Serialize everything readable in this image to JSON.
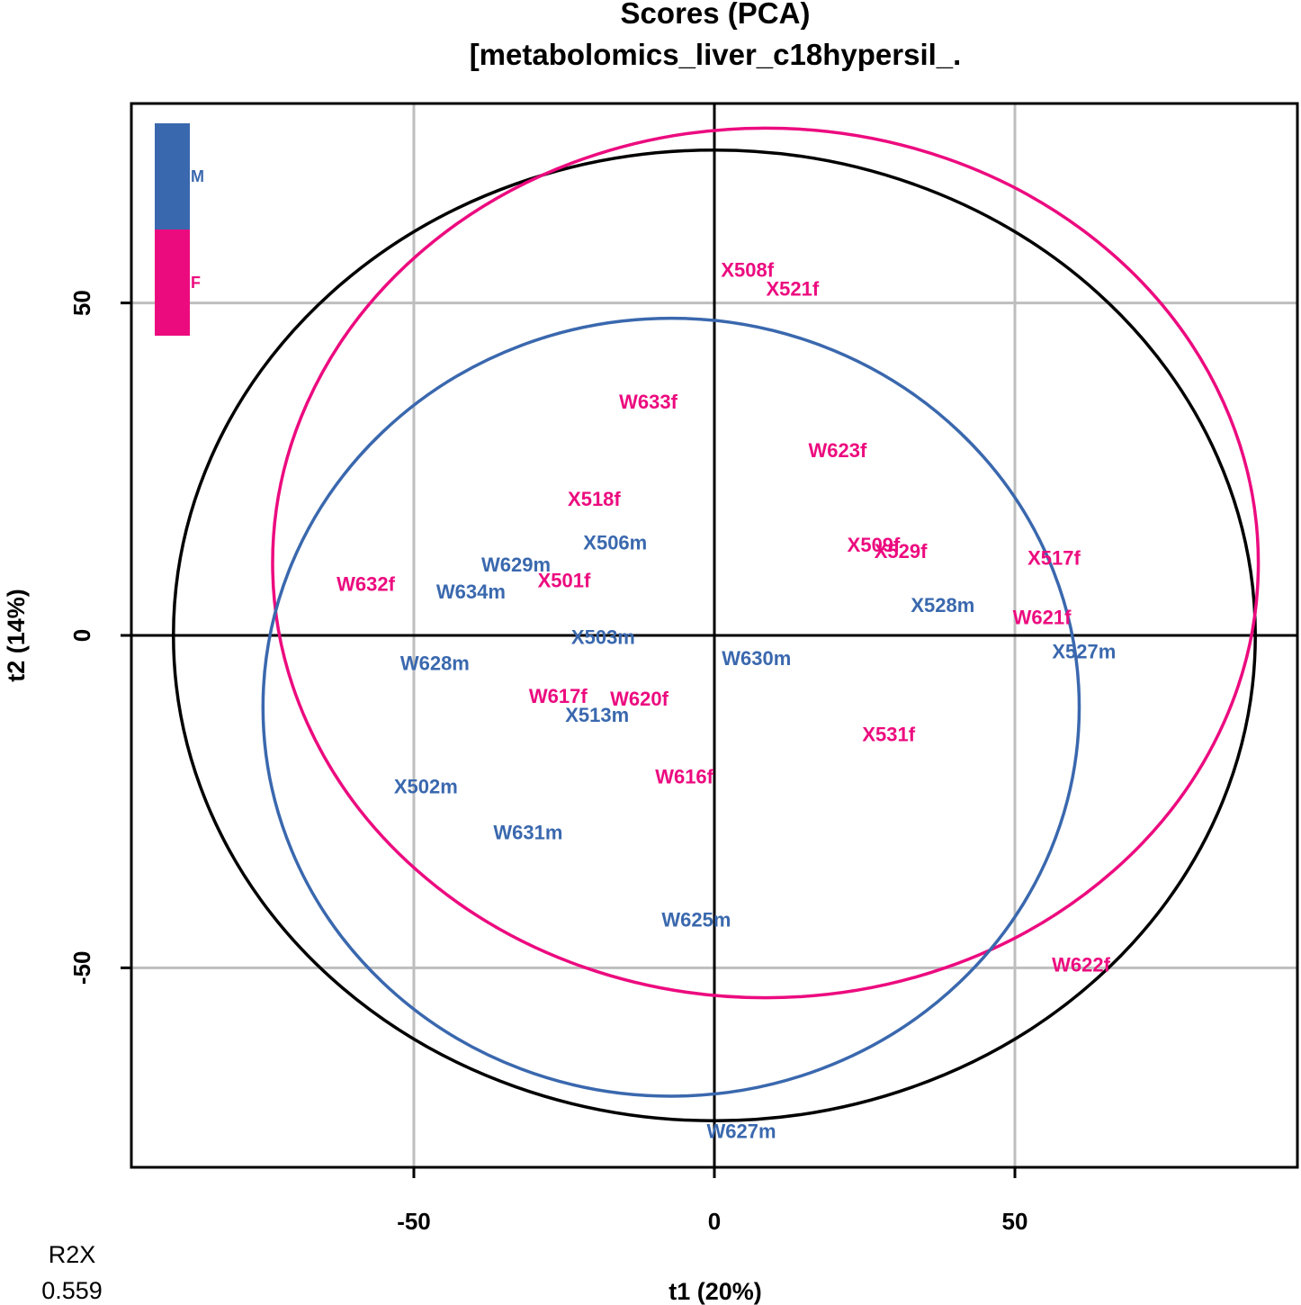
{
  "chart_data": {
    "type": "scatter",
    "title": "Scores (PCA)",
    "subtitle": "[metabolomics_liver_c18hypersil_.",
    "xlabel": "t1 (20%)",
    "ylabel": "t2 (14%)",
    "xlim": [
      -97,
      97
    ],
    "ylim": [
      -80,
      80
    ],
    "xticks": [
      -50,
      0,
      50
    ],
    "yticks": [
      -50,
      0,
      50
    ],
    "xtick_labels": [
      "-50",
      "0",
      "50"
    ],
    "ytick_labels": [
      "-50",
      "0",
      "50"
    ],
    "grid": true,
    "legend_position": "top-left",
    "legend": [
      {
        "label": "M",
        "color": "#3A68AE"
      },
      {
        "label": "F",
        "color": "#EC0B7F"
      }
    ],
    "r2x": {
      "label": "R2X",
      "value": "0.559"
    },
    "colors": {
      "M": "#3A68AE",
      "F": "#EC0B7F",
      "hotelling": "#000000",
      "grid": "#BEBEBE"
    },
    "ellipses": [
      {
        "group": "all",
        "cx": 0,
        "cy": 0,
        "rx": 90,
        "ry": 73
      },
      {
        "group": "F",
        "cx": 8.5,
        "cy": 10.9,
        "rx": 82,
        "ry": 65.4
      },
      {
        "group": "M",
        "cx": -7.2,
        "cy": -10.8,
        "rx": 67.9,
        "ry": 58.5
      }
    ],
    "series": [
      {
        "name": "M",
        "points": [
          {
            "label": "X506m",
            "x": -16.5,
            "y": 14
          },
          {
            "label": "W629m",
            "x": -33,
            "y": 10.7
          },
          {
            "label": "W634m",
            "x": -40.5,
            "y": 6.6
          },
          {
            "label": "X528m",
            "x": 38,
            "y": 4.6
          },
          {
            "label": "X503m",
            "x": -18.5,
            "y": -0.2
          },
          {
            "label": "W628m",
            "x": -46.5,
            "y": -4.1
          },
          {
            "label": "W630m",
            "x": 7,
            "y": -3.4
          },
          {
            "label": "X527m",
            "x": 61.5,
            "y": -2.4
          },
          {
            "label": "X513m",
            "x": -19.5,
            "y": -11.9
          },
          {
            "label": "X502m",
            "x": -48,
            "y": -22.7
          },
          {
            "label": "W631m",
            "x": -31,
            "y": -29.6
          },
          {
            "label": "W625m",
            "x": -3,
            "y": -42.7
          },
          {
            "label": "W627m",
            "x": 4.5,
            "y": -74.5
          }
        ]
      },
      {
        "name": "F",
        "points": [
          {
            "label": "X508f",
            "x": 5.5,
            "y": 55
          },
          {
            "label": "X521f",
            "x": 13,
            "y": 52.2
          },
          {
            "label": "W633f",
            "x": -11,
            "y": 35.2
          },
          {
            "label": "W623f",
            "x": 20.5,
            "y": 27.9
          },
          {
            "label": "X518f",
            "x": -20,
            "y": 20.6
          },
          {
            "label": "X509f",
            "x": 26.5,
            "y": 13.7
          },
          {
            "label": "X529f",
            "x": 31,
            "y": 12.7
          },
          {
            "label": "X517f",
            "x": 56.5,
            "y": 11.7
          },
          {
            "label": "W632f",
            "x": -58,
            "y": 7.8
          },
          {
            "label": "X501f",
            "x": -25,
            "y": 8.3
          },
          {
            "label": "W621f",
            "x": 54.5,
            "y": 2.8
          },
          {
            "label": "W617f",
            "x": -26,
            "y": -9.1
          },
          {
            "label": "W620f",
            "x": -12.5,
            "y": -9.5
          },
          {
            "label": "X531f",
            "x": 29,
            "y": -14.8
          },
          {
            "label": "W616f",
            "x": -5,
            "y": -21.2
          },
          {
            "label": "W622f",
            "x": 61,
            "y": -49.5
          }
        ]
      }
    ]
  }
}
